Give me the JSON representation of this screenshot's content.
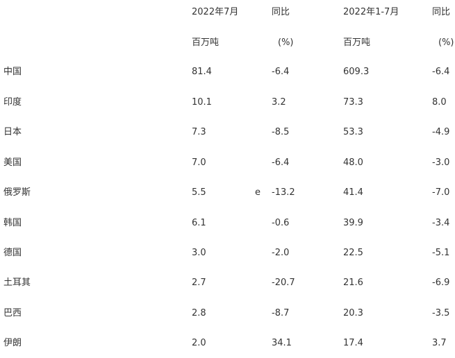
{
  "header": {
    "row1": {
      "month": "2022年7月",
      "yoy1": "同比",
      "ytd": "2022年1-7月",
      "yoy2": "同比"
    },
    "row2": {
      "unit1": "百万吨",
      "pct1": "(%)",
      "unit2": "百万吨",
      "pct2": "(%)"
    }
  },
  "rows": [
    {
      "country": "中国",
      "month": "81.4",
      "note": "",
      "yoy_month": "-6.4",
      "ytd": "609.3",
      "yoy_ytd": "-6.4"
    },
    {
      "country": "印度",
      "month": "10.1",
      "note": "",
      "yoy_month": "3.2",
      "ytd": "73.3",
      "yoy_ytd": "8.0"
    },
    {
      "country": "日本",
      "month": "7.3",
      "note": "",
      "yoy_month": "-8.5",
      "ytd": "53.3",
      "yoy_ytd": "-4.9"
    },
    {
      "country": "美国",
      "month": "7.0",
      "note": "",
      "yoy_month": "-6.4",
      "ytd": "48.0",
      "yoy_ytd": "-3.0"
    },
    {
      "country": "俄罗斯",
      "month": "5.5",
      "note": "e",
      "yoy_month": "-13.2",
      "ytd": "41.4",
      "yoy_ytd": "-7.0"
    },
    {
      "country": "韩国",
      "month": "6.1",
      "note": "",
      "yoy_month": "-0.6",
      "ytd": "39.9",
      "yoy_ytd": "-3.4"
    },
    {
      "country": "德国",
      "month": "3.0",
      "note": "",
      "yoy_month": "-2.0",
      "ytd": "22.5",
      "yoy_ytd": "-5.1"
    },
    {
      "country": "土耳其",
      "month": "2.7",
      "note": "",
      "yoy_month": "-20.7",
      "ytd": "21.6",
      "yoy_ytd": "-6.9"
    },
    {
      "country": "巴西",
      "month": "2.8",
      "note": "",
      "yoy_month": "-8.7",
      "ytd": "20.3",
      "yoy_ytd": "-3.5"
    },
    {
      "country": "伊朗",
      "month": "2.0",
      "note": "",
      "yoy_month": "34.1",
      "ytd": "17.4",
      "yoy_ytd": "3.7"
    }
  ]
}
